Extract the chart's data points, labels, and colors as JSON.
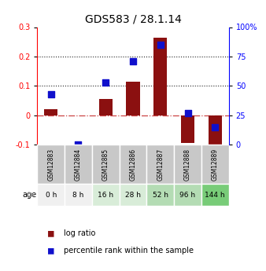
{
  "title": "GDS583 / 28.1.14",
  "categories": [
    "GSM12883",
    "GSM12884",
    "GSM12885",
    "GSM12886",
    "GSM12887",
    "GSM12888",
    "GSM12889"
  ],
  "age_labels": [
    "0 h",
    "8 h",
    "16 h",
    "28 h",
    "52 h",
    "96 h",
    "144 h"
  ],
  "log_ratio": [
    0.02,
    0.0,
    0.055,
    0.115,
    0.265,
    -0.095,
    -0.1
  ],
  "percentile_rank_pct": [
    43,
    0,
    53,
    71,
    85,
    27,
    15
  ],
  "bar_color": "#8B1010",
  "dot_color": "#1010CC",
  "ylim_left": [
    -0.1,
    0.3
  ],
  "ylim_right": [
    0,
    100
  ],
  "yticks_left": [
    -0.1,
    0.0,
    0.1,
    0.2,
    0.3
  ],
  "yticks_right": [
    0,
    25,
    50,
    75,
    100
  ],
  "ytick_labels_left": [
    "-0.1",
    "0",
    "0.1",
    "0.2",
    "0.3"
  ],
  "ytick_labels_right": [
    "0",
    "25",
    "50",
    "75",
    "100%"
  ],
  "hlines": [
    0.1,
    0.2
  ],
  "hline_zero_color": "#cc4444",
  "hline_dotted_color": "#222222",
  "age_bg_colors": [
    "#f0f0f0",
    "#f0f0f0",
    "#d8ecd8",
    "#d8ecd8",
    "#b4dcb4",
    "#b4dcb4",
    "#78cc78"
  ],
  "gsm_bg_color": "#c8c8c8",
  "bar_width": 0.5,
  "dot_size": 40
}
